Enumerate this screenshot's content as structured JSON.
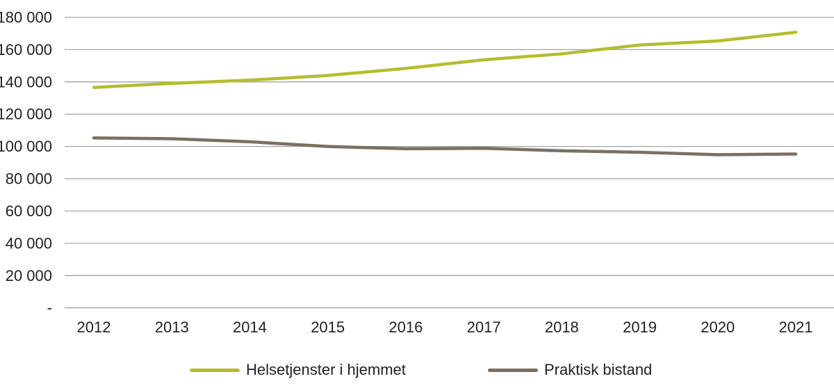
{
  "chart_data": {
    "type": "line",
    "title": "",
    "xlabel": "",
    "ylabel": "",
    "categories": [
      "2012",
      "2013",
      "2014",
      "2015",
      "2016",
      "2017",
      "2018",
      "2019",
      "2020",
      "2021"
    ],
    "series": [
      {
        "name": "Helsetjenster i hjemmet",
        "color": "#b5bd2e",
        "values": [
          136600,
          139100,
          141100,
          144000,
          148400,
          153700,
          157400,
          162900,
          165400,
          170800
        ]
      },
      {
        "name": "Praktisk bistand",
        "color": "#7b6f63",
        "values": [
          105300,
          104800,
          102900,
          100000,
          98600,
          98900,
          97300,
          96400,
          94900,
          95300
        ]
      }
    ],
    "y_axis": {
      "min": 0,
      "max": 180000,
      "step": 20000,
      "tick_values": [
        180000,
        160000,
        140000,
        120000,
        100000,
        80000,
        60000,
        40000,
        20000,
        0
      ],
      "tick_labels": [
        "180 000",
        "160 000",
        "140 000",
        "120 000",
        "100 000",
        "80 000",
        "60 000",
        "40 000",
        "20 000",
        "-"
      ]
    },
    "grid": true,
    "legend_position": "bottom"
  },
  "colors": {
    "grid_line": "#a3a3a3",
    "axis_text": "#231f20",
    "background": "#ffffff"
  }
}
